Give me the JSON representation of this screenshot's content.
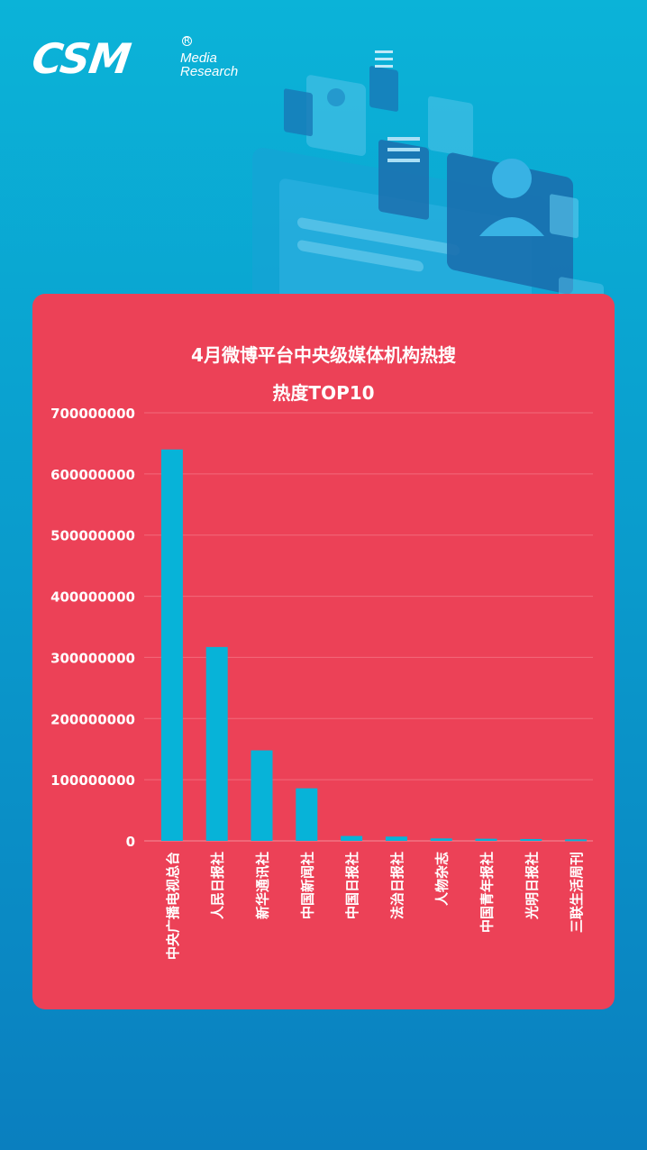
{
  "logo": {
    "brand": "CSM",
    "registered": "R",
    "line1": "Media",
    "line2": "Research"
  },
  "chart_data": {
    "type": "bar",
    "title_line1": "4月微博平台中央级媒体机构热搜",
    "title_line2": "热度TOP10",
    "categories": [
      "中央广播电视总台",
      "人民日报社",
      "新华通讯社",
      "中国新闻社",
      "中国日报社",
      "法治日报社",
      "人物杂志",
      "中国青年报社",
      "光明日报社",
      "三联生活周刊"
    ],
    "values": [
      640000000,
      317000000,
      148000000,
      86000000,
      8000000,
      7000000,
      4000000,
      3500000,
      3000000,
      2500000
    ],
    "ylim": [
      0,
      700000000
    ],
    "yticks": [
      "0",
      "100000000",
      "200000000",
      "300000000",
      "400000000",
      "500000000",
      "600000000",
      "700000000"
    ],
    "grid": true,
    "bar_color": "#07b3d8",
    "xlabel": "",
    "ylabel": ""
  }
}
